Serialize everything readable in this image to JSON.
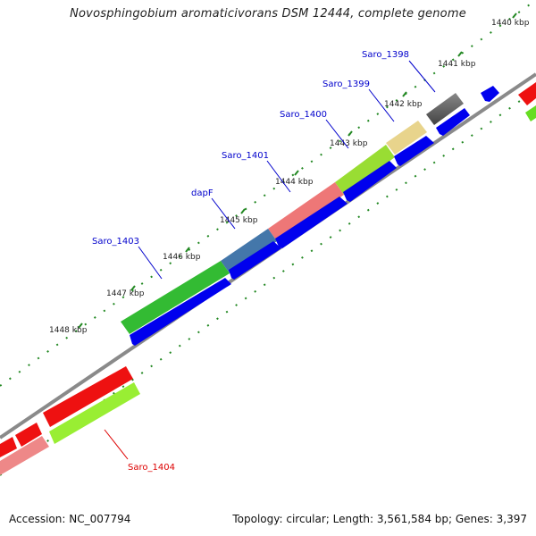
{
  "title": "Novosphingobium aromaticivorans DSM 12444, complete genome",
  "accession": "Accession: NC_007794",
  "stats": "Topology: circular; Length: 3,561,584 bp; Genes: 3,397",
  "colors": {
    "plus_ring": "#0000ee",
    "blue_label": "#0000cc",
    "red_label": "#dd0000",
    "tick": "#228822",
    "backbone": "#888888"
  },
  "ticks": {
    "1440": "1440 kbp",
    "1441": "1441 kbp",
    "1442": "1442 kbp",
    "1443": "1443 kbp",
    "1444": "1444 kbp",
    "1445": "1445 kbp",
    "1446": "1446 kbp",
    "1447": "1447 kbp",
    "1448": "1448 kbp"
  },
  "gene_labels": {
    "saro_1398": "Saro_1398",
    "saro_1399": "Saro_1399",
    "saro_1400": "Saro_1400",
    "saro_1401": "Saro_1401",
    "dapf": "dapF",
    "saro_1403": "Saro_1403",
    "saro_1404": "Saro_1404"
  }
}
